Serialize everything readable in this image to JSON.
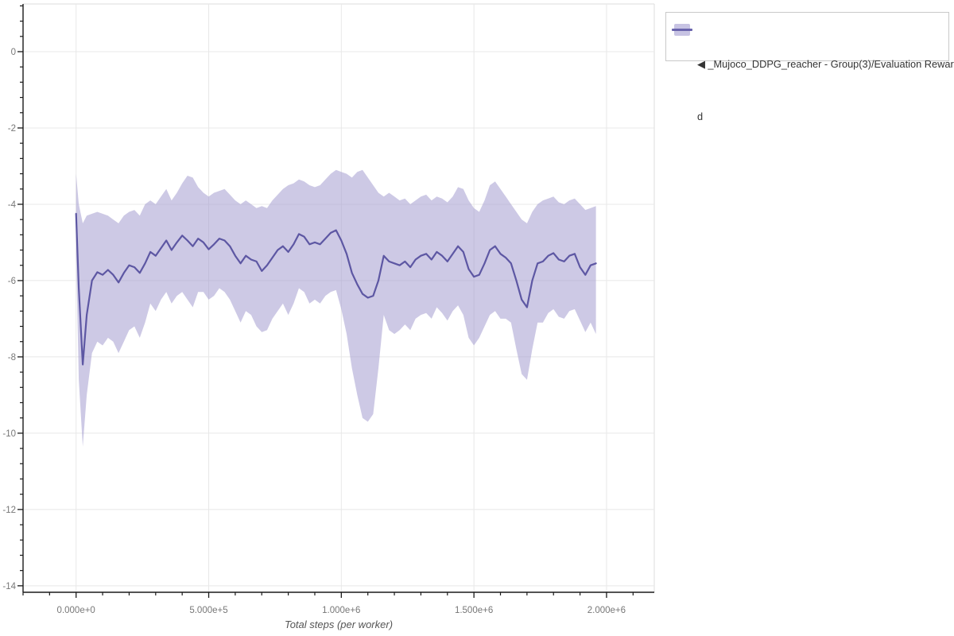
{
  "ui": {
    "legend": {
      "lines": [
        "◀ _Mujoco_DDPG_reacher - Group(3)/Evaluation Rewar",
        "d"
      ]
    }
  },
  "colors": {
    "mean_line": "#5d57a3",
    "band_fill": "#9b94cc",
    "band_opacity": 0.5,
    "grid": "#e8e8e8",
    "plot_border": "#dedede",
    "axis": "#1a1a1a",
    "tick_label": "#777777",
    "axis_title": "#555555",
    "legend_text": "#333333"
  },
  "chart_data": {
    "type": "line",
    "title": "",
    "xlabel": "Total steps (per worker)",
    "ylabel": "",
    "grid": true,
    "legend_position": "top-right",
    "xlim": [
      -200000,
      2180000
    ],
    "ylim": [
      -14.17,
      1.25
    ],
    "x_ticks": {
      "values": [
        0,
        500000,
        1000000,
        1500000,
        2000000
      ],
      "labels": [
        "0.000e+0",
        "5.000e+5",
        "1.000e+6",
        "1.500e+6",
        "2.000e+6"
      ],
      "minor_step": 100000
    },
    "y_ticks": {
      "values": [
        0,
        -2,
        -4,
        -6,
        -8,
        -10,
        -12,
        -14
      ],
      "labels": [
        "0",
        "-2",
        "-4",
        "-6",
        "-8",
        "-10",
        "-12",
        "-14"
      ],
      "minor_step": 0.4
    },
    "series": [
      {
        "name": "_Mujoco_DDPG_reacher - Group(3)/Evaluation Reward",
        "x": [
          0,
          10000,
          25000,
          40000,
          60000,
          80000,
          100000,
          120000,
          140000,
          160000,
          180000,
          200000,
          220000,
          240000,
          260000,
          280000,
          300000,
          320000,
          340000,
          360000,
          380000,
          400000,
          420000,
          440000,
          460000,
          480000,
          500000,
          520000,
          540000,
          560000,
          580000,
          600000,
          620000,
          640000,
          660000,
          680000,
          700000,
          720000,
          740000,
          760000,
          780000,
          800000,
          820000,
          840000,
          860000,
          880000,
          900000,
          920000,
          940000,
          960000,
          980000,
          1000000,
          1020000,
          1040000,
          1060000,
          1080000,
          1100000,
          1120000,
          1140000,
          1160000,
          1180000,
          1200000,
          1220000,
          1240000,
          1260000,
          1280000,
          1300000,
          1320000,
          1340000,
          1360000,
          1380000,
          1400000,
          1420000,
          1440000,
          1460000,
          1480000,
          1500000,
          1520000,
          1540000,
          1560000,
          1580000,
          1600000,
          1620000,
          1640000,
          1660000,
          1680000,
          1700000,
          1720000,
          1740000,
          1760000,
          1780000,
          1800000,
          1820000,
          1840000,
          1860000,
          1880000,
          1900000,
          1920000,
          1940000,
          1960000
        ],
        "mean": [
          -4.25,
          -6.2,
          -8.2,
          -6.9,
          -6.0,
          -5.78,
          -5.85,
          -5.72,
          -5.85,
          -6.05,
          -5.8,
          -5.6,
          -5.65,
          -5.8,
          -5.55,
          -5.25,
          -5.35,
          -5.15,
          -4.95,
          -5.2,
          -5.0,
          -4.82,
          -4.95,
          -5.1,
          -4.9,
          -5.0,
          -5.18,
          -5.05,
          -4.9,
          -4.95,
          -5.1,
          -5.35,
          -5.55,
          -5.35,
          -5.45,
          -5.5,
          -5.75,
          -5.6,
          -5.4,
          -5.2,
          -5.1,
          -5.25,
          -5.05,
          -4.78,
          -4.85,
          -5.05,
          -5.0,
          -5.05,
          -4.9,
          -4.75,
          -4.68,
          -4.95,
          -5.3,
          -5.8,
          -6.1,
          -6.35,
          -6.45,
          -6.4,
          -6.0,
          -5.35,
          -5.5,
          -5.55,
          -5.6,
          -5.5,
          -5.65,
          -5.45,
          -5.35,
          -5.3,
          -5.45,
          -5.25,
          -5.35,
          -5.5,
          -5.3,
          -5.1,
          -5.25,
          -5.7,
          -5.9,
          -5.85,
          -5.55,
          -5.2,
          -5.1,
          -5.3,
          -5.4,
          -5.55,
          -6.0,
          -6.5,
          -6.7,
          -6.0,
          -5.55,
          -5.5,
          -5.35,
          -5.28,
          -5.45,
          -5.5,
          -5.35,
          -5.3,
          -5.65,
          -5.85,
          -5.6,
          -5.55
        ],
        "band_upper": [
          -3.2,
          -4.0,
          -4.5,
          -4.3,
          -4.25,
          -4.2,
          -4.25,
          -4.3,
          -4.4,
          -4.5,
          -4.3,
          -4.2,
          -4.15,
          -4.3,
          -4.0,
          -3.9,
          -4.0,
          -3.8,
          -3.6,
          -3.9,
          -3.7,
          -3.45,
          -3.25,
          -3.3,
          -3.55,
          -3.7,
          -3.8,
          -3.7,
          -3.65,
          -3.6,
          -3.75,
          -3.9,
          -4.0,
          -3.9,
          -4.0,
          -4.1,
          -4.05,
          -4.1,
          -3.9,
          -3.75,
          -3.6,
          -3.5,
          -3.45,
          -3.35,
          -3.4,
          -3.5,
          -3.55,
          -3.5,
          -3.35,
          -3.2,
          -3.1,
          -3.15,
          -3.2,
          -3.3,
          -3.15,
          -3.1,
          -3.3,
          -3.5,
          -3.7,
          -3.8,
          -3.7,
          -3.8,
          -3.9,
          -3.85,
          -4.0,
          -3.9,
          -3.8,
          -3.75,
          -3.9,
          -3.8,
          -3.85,
          -3.95,
          -3.8,
          -3.55,
          -3.6,
          -3.9,
          -4.1,
          -4.2,
          -3.9,
          -3.5,
          -3.4,
          -3.6,
          -3.8,
          -4.0,
          -4.2,
          -4.4,
          -4.5,
          -4.2,
          -4.0,
          -3.9,
          -3.85,
          -3.8,
          -3.95,
          -4.0,
          -3.9,
          -3.85,
          -4.0,
          -4.15,
          -4.1,
          -4.05
        ],
        "band_lower": [
          -5.3,
          -8.6,
          -10.35,
          -9.0,
          -7.9,
          -7.6,
          -7.7,
          -7.5,
          -7.6,
          -7.9,
          -7.6,
          -7.3,
          -7.2,
          -7.5,
          -7.1,
          -6.6,
          -6.8,
          -6.5,
          -6.3,
          -6.6,
          -6.4,
          -6.3,
          -6.5,
          -6.7,
          -6.3,
          -6.3,
          -6.5,
          -6.4,
          -6.2,
          -6.3,
          -6.5,
          -6.8,
          -7.1,
          -6.8,
          -6.9,
          -7.2,
          -7.35,
          -7.3,
          -7.0,
          -6.8,
          -6.6,
          -6.9,
          -6.6,
          -6.2,
          -6.3,
          -6.6,
          -6.5,
          -6.6,
          -6.4,
          -6.3,
          -6.25,
          -6.75,
          -7.4,
          -8.3,
          -9.0,
          -9.6,
          -9.7,
          -9.5,
          -8.3,
          -6.9,
          -7.3,
          -7.4,
          -7.3,
          -7.15,
          -7.3,
          -7.0,
          -6.9,
          -6.85,
          -7.0,
          -6.7,
          -6.85,
          -7.05,
          -6.8,
          -6.65,
          -6.9,
          -7.5,
          -7.7,
          -7.5,
          -7.2,
          -6.9,
          -6.8,
          -7.0,
          -7.0,
          -7.1,
          -7.8,
          -8.45,
          -8.6,
          -7.8,
          -7.1,
          -7.1,
          -6.85,
          -6.75,
          -6.95,
          -7.0,
          -6.8,
          -6.75,
          -7.05,
          -7.35,
          -7.1,
          -7.4
        ]
      }
    ]
  }
}
